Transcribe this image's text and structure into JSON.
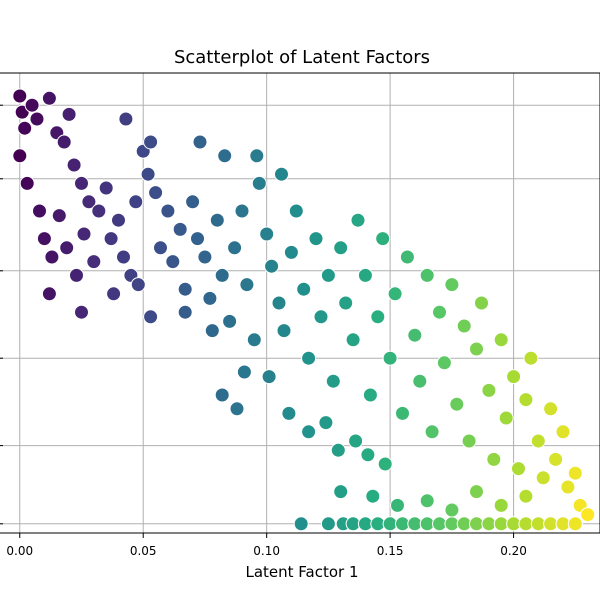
{
  "chart_data": {
    "type": "scatter",
    "title": "Scatterplot of Latent Factors",
    "xlabel": "Latent Factor 1",
    "ylabel": "",
    "xlim": [
      -0.008,
      0.235
    ],
    "ylim": [
      0.0,
      1.0
    ],
    "x_ticks": [
      0.0,
      0.05,
      0.1,
      0.15,
      0.2
    ],
    "x_tick_labels": [
      "0.00",
      "0.05",
      "0.10",
      "0.15",
      "0.20"
    ],
    "y_ticks": [
      0.02,
      0.19,
      0.38,
      0.57,
      0.77,
      0.93
    ],
    "grid": true,
    "colormap": "viridis",
    "color_encodes": "Latent Factor 1",
    "marker_edge_color": "#ffffff",
    "points": [
      [
        0.0,
        0.95
      ],
      [
        0.001,
        0.915
      ],
      [
        0.002,
        0.88
      ],
      [
        0.005,
        0.93
      ],
      [
        0.007,
        0.9
      ],
      [
        0.012,
        0.945
      ],
      [
        0.015,
        0.87
      ],
      [
        0.018,
        0.85
      ],
      [
        0.02,
        0.91
      ],
      [
        0.022,
        0.8
      ],
      [
        0.025,
        0.76
      ],
      [
        0.028,
        0.72
      ],
      [
        0.0,
        0.82
      ],
      [
        0.003,
        0.76
      ],
      [
        0.008,
        0.7
      ],
      [
        0.01,
        0.64
      ],
      [
        0.013,
        0.6
      ],
      [
        0.016,
        0.69
      ],
      [
        0.019,
        0.62
      ],
      [
        0.023,
        0.56
      ],
      [
        0.026,
        0.65
      ],
      [
        0.03,
        0.59
      ],
      [
        0.032,
        0.7
      ],
      [
        0.035,
        0.75
      ],
      [
        0.037,
        0.64
      ],
      [
        0.04,
        0.68
      ],
      [
        0.042,
        0.6
      ],
      [
        0.045,
        0.56
      ],
      [
        0.047,
        0.72
      ],
      [
        0.05,
        0.83
      ],
      [
        0.052,
        0.78
      ],
      [
        0.055,
        0.74
      ],
      [
        0.057,
        0.62
      ],
      [
        0.06,
        0.7
      ],
      [
        0.062,
        0.59
      ],
      [
        0.065,
        0.66
      ],
      [
        0.067,
        0.53
      ],
      [
        0.07,
        0.72
      ],
      [
        0.072,
        0.64
      ],
      [
        0.075,
        0.6
      ],
      [
        0.077,
        0.51
      ],
      [
        0.08,
        0.68
      ],
      [
        0.082,
        0.56
      ],
      [
        0.085,
        0.46
      ],
      [
        0.087,
        0.62
      ],
      [
        0.09,
        0.7
      ],
      [
        0.092,
        0.54
      ],
      [
        0.095,
        0.42
      ],
      [
        0.097,
        0.76
      ],
      [
        0.1,
        0.65
      ],
      [
        0.102,
        0.58
      ],
      [
        0.105,
        0.5
      ],
      [
        0.107,
        0.44
      ],
      [
        0.11,
        0.61
      ],
      [
        0.112,
        0.7
      ],
      [
        0.115,
        0.53
      ],
      [
        0.117,
        0.38
      ],
      [
        0.12,
        0.64
      ],
      [
        0.122,
        0.47
      ],
      [
        0.125,
        0.56
      ],
      [
        0.127,
        0.33
      ],
      [
        0.13,
        0.62
      ],
      [
        0.132,
        0.5
      ],
      [
        0.135,
        0.42
      ],
      [
        0.137,
        0.68
      ],
      [
        0.14,
        0.56
      ],
      [
        0.142,
        0.3
      ],
      [
        0.145,
        0.47
      ],
      [
        0.147,
        0.64
      ],
      [
        0.15,
        0.38
      ],
      [
        0.152,
        0.52
      ],
      [
        0.155,
        0.26
      ],
      [
        0.157,
        0.6
      ],
      [
        0.16,
        0.43
      ],
      [
        0.162,
        0.33
      ],
      [
        0.165,
        0.56
      ],
      [
        0.167,
        0.22
      ],
      [
        0.17,
        0.48
      ],
      [
        0.172,
        0.37
      ],
      [
        0.175,
        0.54
      ],
      [
        0.177,
        0.28
      ],
      [
        0.18,
        0.45
      ],
      [
        0.182,
        0.2
      ],
      [
        0.185,
        0.4
      ],
      [
        0.187,
        0.5
      ],
      [
        0.19,
        0.31
      ],
      [
        0.192,
        0.16
      ],
      [
        0.195,
        0.42
      ],
      [
        0.197,
        0.25
      ],
      [
        0.2,
        0.34
      ],
      [
        0.202,
        0.14
      ],
      [
        0.205,
        0.29
      ],
      [
        0.207,
        0.38
      ],
      [
        0.21,
        0.2
      ],
      [
        0.212,
        0.12
      ],
      [
        0.215,
        0.27
      ],
      [
        0.217,
        0.16
      ],
      [
        0.22,
        0.22
      ],
      [
        0.222,
        0.1
      ],
      [
        0.225,
        0.13
      ],
      [
        0.227,
        0.06
      ],
      [
        0.23,
        0.04
      ],
      [
        0.114,
        0.02
      ],
      [
        0.125,
        0.02
      ],
      [
        0.131,
        0.02
      ],
      [
        0.135,
        0.02
      ],
      [
        0.14,
        0.02
      ],
      [
        0.145,
        0.02
      ],
      [
        0.15,
        0.02
      ],
      [
        0.155,
        0.02
      ],
      [
        0.16,
        0.02
      ],
      [
        0.165,
        0.02
      ],
      [
        0.17,
        0.02
      ],
      [
        0.175,
        0.02
      ],
      [
        0.18,
        0.02
      ],
      [
        0.185,
        0.02
      ],
      [
        0.19,
        0.02
      ],
      [
        0.195,
        0.02
      ],
      [
        0.2,
        0.02
      ],
      [
        0.205,
        0.02
      ],
      [
        0.21,
        0.02
      ],
      [
        0.215,
        0.02
      ],
      [
        0.22,
        0.02
      ],
      [
        0.225,
        0.02
      ],
      [
        0.13,
        0.09
      ],
      [
        0.143,
        0.08
      ],
      [
        0.153,
        0.06
      ],
      [
        0.165,
        0.07
      ],
      [
        0.175,
        0.05
      ],
      [
        0.185,
        0.09
      ],
      [
        0.195,
        0.06
      ],
      [
        0.205,
        0.08
      ],
      [
        0.043,
        0.9
      ],
      [
        0.053,
        0.85
      ],
      [
        0.073,
        0.85
      ],
      [
        0.083,
        0.82
      ],
      [
        0.096,
        0.82
      ],
      [
        0.106,
        0.78
      ],
      [
        0.012,
        0.52
      ],
      [
        0.025,
        0.48
      ],
      [
        0.038,
        0.52
      ],
      [
        0.048,
        0.54
      ],
      [
        0.053,
        0.47
      ],
      [
        0.067,
        0.48
      ],
      [
        0.078,
        0.44
      ],
      [
        0.082,
        0.3
      ],
      [
        0.088,
        0.27
      ],
      [
        0.091,
        0.35
      ],
      [
        0.101,
        0.34
      ],
      [
        0.109,
        0.26
      ],
      [
        0.117,
        0.22
      ],
      [
        0.124,
        0.24
      ],
      [
        0.129,
        0.18
      ],
      [
        0.136,
        0.2
      ],
      [
        0.141,
        0.17
      ],
      [
        0.148,
        0.15
      ]
    ]
  }
}
